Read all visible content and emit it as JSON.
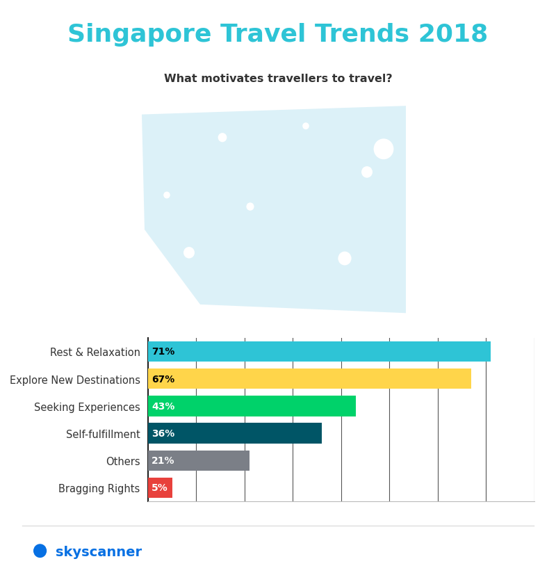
{
  "chart_data": {
    "type": "bar",
    "orientation": "horizontal",
    "title": "Singapore Travel Trends 2018",
    "subtitle": "What motivates travellers to travel?",
    "annotations": [
      "skyscanner"
    ],
    "categories": [
      "Rest & Relaxation",
      "Explore New Destinations",
      "Seeking Experiences",
      "Self-fulfillment",
      "Others",
      "Bragging Rights"
    ],
    "values": [
      71,
      67,
      43,
      36,
      21,
      5
    ],
    "value_labels": [
      "71%",
      "67%",
      "43%",
      "36%",
      "21%",
      "5%"
    ],
    "data_labels": true,
    "colors": [
      "#2ec4d6",
      "#ffd54a",
      "#00d26a",
      "#005566",
      "#7b7f87",
      "#e8413c"
    ],
    "xlim": [
      0,
      80
    ],
    "xticks": [
      0,
      10,
      20,
      30,
      40,
      50,
      60,
      70,
      80
    ],
    "grid": true,
    "tick_labels": "y"
  }
}
